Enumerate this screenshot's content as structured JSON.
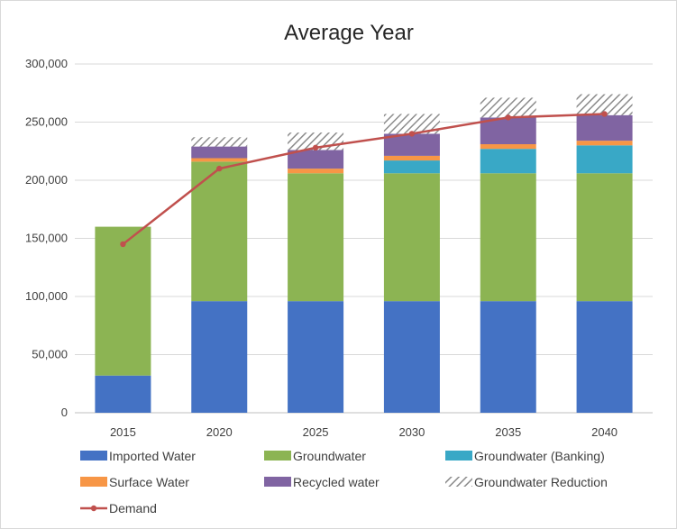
{
  "chart_data": {
    "type": "bar",
    "stacked": true,
    "title": "Average Year",
    "xlabel": "",
    "ylabel": "",
    "categories": [
      "2015",
      "2020",
      "2025",
      "2030",
      "2035",
      "2040"
    ],
    "ylim": [
      0,
      300000
    ],
    "yticks": [
      0,
      50000,
      100000,
      150000,
      200000,
      250000,
      300000
    ],
    "ytick_labels": [
      "0",
      "50,000",
      "100,000",
      "150,000",
      "200,000",
      "250,000",
      "300,000"
    ],
    "grid": true,
    "legend_position": "bottom",
    "series": [
      {
        "name": "Imported Water",
        "kind": "bar",
        "color": "#4472c4",
        "values": [
          32000,
          96000,
          96000,
          96000,
          96000,
          96000
        ]
      },
      {
        "name": "Groundwater",
        "kind": "bar",
        "color": "#8cb453",
        "values": [
          128000,
          120000,
          110000,
          110000,
          110000,
          110000
        ]
      },
      {
        "name": "Groundwater (Banking)",
        "kind": "bar",
        "color": "#39a8c6",
        "values": [
          0,
          0,
          0,
          11000,
          21000,
          24000
        ]
      },
      {
        "name": "Surface Water",
        "kind": "bar",
        "color": "#f79646",
        "values": [
          0,
          3000,
          4000,
          4000,
          4000,
          4000
        ]
      },
      {
        "name": "Recycled water",
        "kind": "bar",
        "color": "#8064a2",
        "values": [
          0,
          10000,
          16000,
          19000,
          23000,
          22000
        ]
      },
      {
        "name": "Groundwater Reduction",
        "kind": "bar",
        "pattern": "hatch",
        "color": "#8c8c8c",
        "values": [
          0,
          8000,
          15000,
          17000,
          17000,
          18000
        ]
      },
      {
        "name": "Demand",
        "kind": "line",
        "color": "#c0504d",
        "values": [
          145000,
          210000,
          228000,
          240000,
          254000,
          257000
        ]
      }
    ]
  }
}
